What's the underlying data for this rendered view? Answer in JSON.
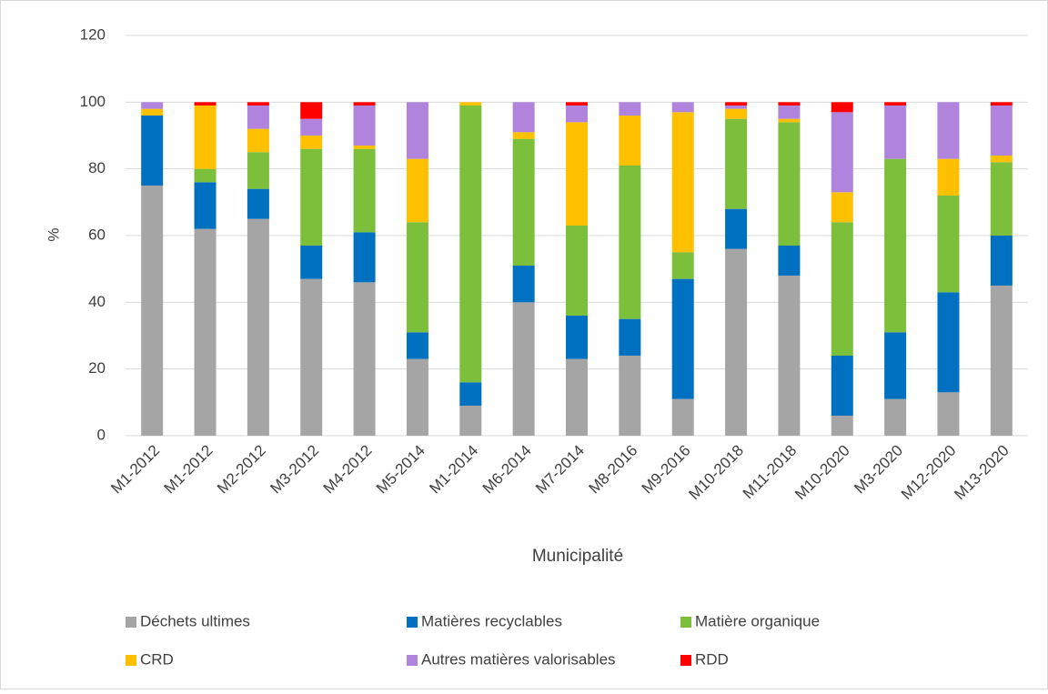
{
  "chart_data": {
    "type": "stacked_bar",
    "x_label": "Municipalité",
    "y_label": "%",
    "categories": [
      "M1-2012",
      "M1-2012",
      "M2-2012",
      "M3-2012",
      "M4-2012",
      "M5-2014",
      "M1-2014",
      "M6-2014",
      "M7-2014",
      "M8-2016",
      "M9-2016",
      "M10-2018",
      "M11-2018",
      "M10-2020",
      "M3-2020",
      "M12-2020",
      "M13-2020"
    ],
    "series": [
      {
        "name": "Déchets ultimes",
        "color": "#a5a5a5",
        "values": [
          75,
          62,
          65,
          47,
          46,
          23,
          9,
          40,
          23,
          24,
          11,
          56,
          48,
          6,
          11,
          13,
          45
        ]
      },
      {
        "name": "Matières recyclables",
        "color": "#0070c0",
        "values": [
          21,
          14,
          9,
          10,
          15,
          8,
          7,
          11,
          13,
          11,
          36,
          12,
          9,
          18,
          20,
          30,
          15
        ]
      },
      {
        "name": "Matière organique",
        "color": "#7cbf3a",
        "values": [
          0,
          4,
          11,
          29,
          25,
          33,
          83,
          38,
          27,
          46,
          8,
          27,
          37,
          40,
          52,
          29,
          22
        ]
      },
      {
        "name": "CRD",
        "color": "#ffc000",
        "values": [
          2,
          19,
          7,
          4,
          1,
          19,
          1,
          2,
          31,
          15,
          42,
          3,
          1,
          9,
          0,
          11,
          2
        ]
      },
      {
        "name": "Autres matières valorisables",
        "color": "#b084dc",
        "values": [
          2,
          0,
          7,
          5,
          12,
          17,
          0,
          9,
          5,
          4,
          3,
          1,
          4,
          24,
          16,
          17,
          15
        ]
      },
      {
        "name": "RDD",
        "color": "#ff0000",
        "values": [
          0,
          1,
          1,
          5,
          1,
          0,
          0,
          0,
          1,
          0,
          0,
          1,
          1,
          3,
          1,
          0,
          1
        ]
      }
    ],
    "ylim": [
      0,
      120
    ],
    "yticks": [
      0,
      20,
      40,
      60,
      80,
      100,
      120
    ],
    "grid": true,
    "legend": "bottom"
  }
}
